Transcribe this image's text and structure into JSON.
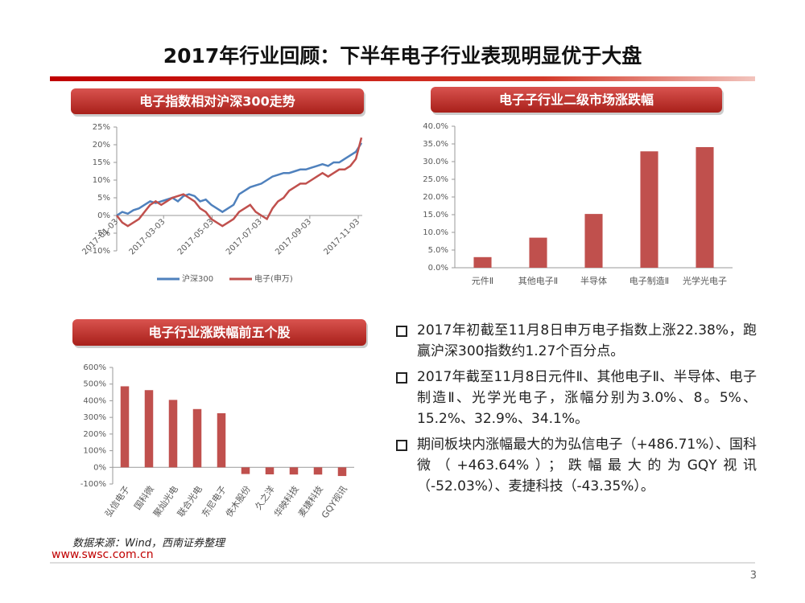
{
  "title": "2017年行业回顾：下半年电子行业表现明显优于大盘",
  "chart_data": [
    {
      "type": "line",
      "title": "电子指数相对沪深300走势",
      "x": [
        "2017-01-03",
        "2017-01-10",
        "2017-01-17",
        "2017-01-24",
        "2017-01-31",
        "2017-02-07",
        "2017-02-14",
        "2017-02-21",
        "2017-02-28",
        "2017-03-07",
        "2017-03-14",
        "2017-03-21",
        "2017-03-28",
        "2017-04-04",
        "2017-04-11",
        "2017-04-18",
        "2017-04-25",
        "2017-05-02",
        "2017-05-09",
        "2017-05-16",
        "2017-05-23",
        "2017-05-30",
        "2017-06-06",
        "2017-06-13",
        "2017-06-20",
        "2017-06-27",
        "2017-07-04",
        "2017-07-11",
        "2017-07-18",
        "2017-07-25",
        "2017-08-01",
        "2017-08-08",
        "2017-08-15",
        "2017-08-22",
        "2017-08-29",
        "2017-09-05",
        "2017-09-12",
        "2017-09-19",
        "2017-09-26",
        "2017-10-03",
        "2017-10-10",
        "2017-10-17",
        "2017-10-24",
        "2017-10-31",
        "2017-11-07"
      ],
      "series": [
        {
          "name": "沪深300",
          "color": "#4f81bd",
          "values": [
            0,
            1,
            0.5,
            1.5,
            2,
            3,
            4,
            3.5,
            4,
            4.5,
            5,
            4,
            5.5,
            6,
            5.5,
            4,
            4.5,
            3,
            2,
            1,
            2,
            3,
            6,
            7,
            8,
            8.5,
            9,
            10,
            11,
            11.5,
            12,
            12,
            12.5,
            13,
            13,
            13.5,
            14,
            14.5,
            14,
            15,
            15,
            16,
            17,
            18,
            20.5
          ]
        },
        {
          "name": "电子(申万)",
          "color": "#c0504d",
          "values": [
            0,
            -2,
            -3,
            -2,
            -1,
            1,
            3,
            4,
            3,
            4,
            5,
            5.5,
            6,
            5,
            4,
            2,
            1,
            -1,
            -2,
            -3,
            -2,
            -1,
            1,
            2,
            3,
            1,
            0,
            -1,
            2,
            4,
            5,
            7,
            8,
            9,
            9,
            10,
            11,
            12,
            11,
            12,
            13,
            13,
            14,
            16,
            22
          ]
        }
      ],
      "xlim": [
        "2017-01-03",
        "2017-11-08"
      ],
      "xticks": [
        "2017-01-03",
        "2017-03-03",
        "2017-05-03",
        "2017-07-03",
        "2017-09-03",
        "2017-11-03"
      ],
      "ylim": [
        -10,
        25
      ],
      "yticks": [
        {
          "value": -10,
          "label": "-10%"
        },
        {
          "value": -5,
          "label": "-5%"
        },
        {
          "value": 0,
          "label": "0%"
        },
        {
          "value": 5,
          "label": "5%"
        },
        {
          "value": 10,
          "label": "10%"
        },
        {
          "value": 15,
          "label": "15%"
        },
        {
          "value": 20,
          "label": "20%"
        },
        {
          "value": 25,
          "label": "25%"
        }
      ]
    },
    {
      "type": "bar",
      "title": "电子子行业二级市场涨跌幅",
      "categories": [
        "元件Ⅱ",
        "其他电子Ⅱ",
        "半导体",
        "电子制造Ⅱ",
        "光学光电子"
      ],
      "values": [
        3.0,
        8.5,
        15.2,
        32.9,
        34.1
      ],
      "color": "#c0504d",
      "ylim": [
        0,
        40
      ],
      "yticks": [
        {
          "value": 0,
          "label": "0.0%"
        },
        {
          "value": 5,
          "label": "5.0%"
        },
        {
          "value": 10,
          "label": "10.0%"
        },
        {
          "value": 15,
          "label": "15.0%"
        },
        {
          "value": 20,
          "label": "20.0%"
        },
        {
          "value": 25,
          "label": "25.0%"
        },
        {
          "value": 30,
          "label": "30.0%"
        },
        {
          "value": 35,
          "label": "35.0%"
        },
        {
          "value": 40,
          "label": "40.0%"
        }
      ]
    },
    {
      "type": "bar",
      "title": "电子行业涨跌幅前五个股",
      "categories": [
        "弘信电子",
        "国科微",
        "聚灿光电",
        "联合光电",
        "东尼电子",
        "佚木股份",
        "久之洋",
        "华映科技",
        "麦捷科技",
        "GQY视讯"
      ],
      "values": [
        486.71,
        463.64,
        405,
        350,
        325,
        -40,
        -42,
        -43,
        -43.35,
        -52.03
      ],
      "color": "#c0504d",
      "ylim": [
        -100,
        600
      ],
      "yticks": [
        {
          "value": -100,
          "label": "-100%"
        },
        {
          "value": 0,
          "label": "0%"
        },
        {
          "value": 100,
          "label": "100%"
        },
        {
          "value": 200,
          "label": "200%"
        },
        {
          "value": 300,
          "label": "300%"
        },
        {
          "value": 400,
          "label": "400%"
        },
        {
          "value": 500,
          "label": "500%"
        },
        {
          "value": 600,
          "label": "600%"
        }
      ]
    }
  ],
  "bullets": [
    "2017年初截至11月8日申万电子指数上涨22.38%，跑赢沪深300指数约1.27个百分点。",
    "2017年截至11月8日元件Ⅱ、其他电子Ⅱ、半导体、电子制造Ⅱ、光学光电子，涨幅分别为3.0%、8。5%、15.2%、32.9%、34.1%。",
    "期间板块内涨幅最大的为弘信电子（+486.71%）、国科微（+463.64%）；跌幅最大的为GQY视讯 （-52.03%）、麦捷科技（-43.35%）。"
  ],
  "source": "数据来源：Wind，西南证券整理",
  "url": "www.swsc.com.cn",
  "page_number": "3"
}
